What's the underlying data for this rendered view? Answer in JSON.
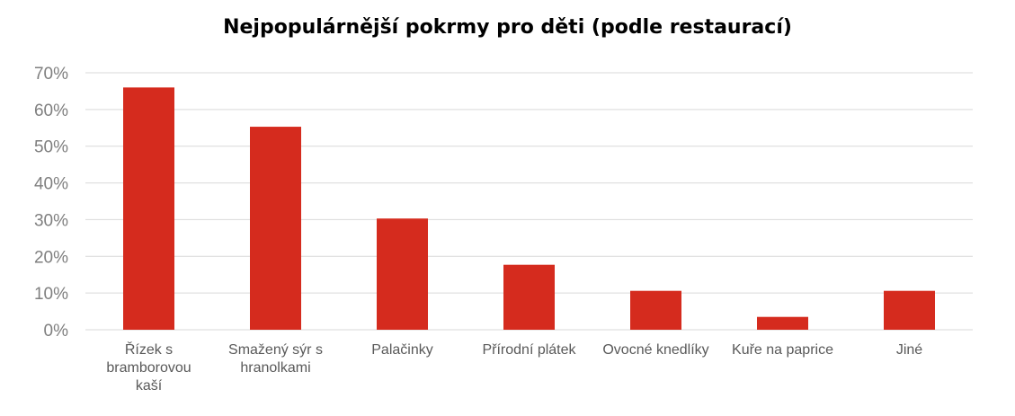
{
  "chart_data": {
    "type": "bar",
    "title": "Nejpopulárnější pokrmy pro děti (podle restaurací)",
    "categories": [
      [
        "Řízek s",
        "bramborovou",
        "kaší"
      ],
      [
        "Smažený sýr s",
        "hranolkami"
      ],
      [
        "Palačinky"
      ],
      [
        "Přírodní plátek"
      ],
      [
        "Ovocné knedlíky"
      ],
      [
        "Kuře na paprice"
      ],
      [
        "Jiné"
      ]
    ],
    "values": [
      66,
      55.3,
      30.3,
      17.7,
      10.6,
      3.5,
      10.6
    ],
    "y_ticks": [
      "0%",
      "10%",
      "20%",
      "30%",
      "40%",
      "50%",
      "60%",
      "70%"
    ],
    "ylim": [
      0,
      70
    ],
    "xlabel": "",
    "ylabel": "",
    "grid": true,
    "legend": "none",
    "colors": {
      "bar": "#d52b1e",
      "grid": "#d9d9d9",
      "tick_text": "#7f7f7f",
      "category_text": "#595959"
    }
  }
}
